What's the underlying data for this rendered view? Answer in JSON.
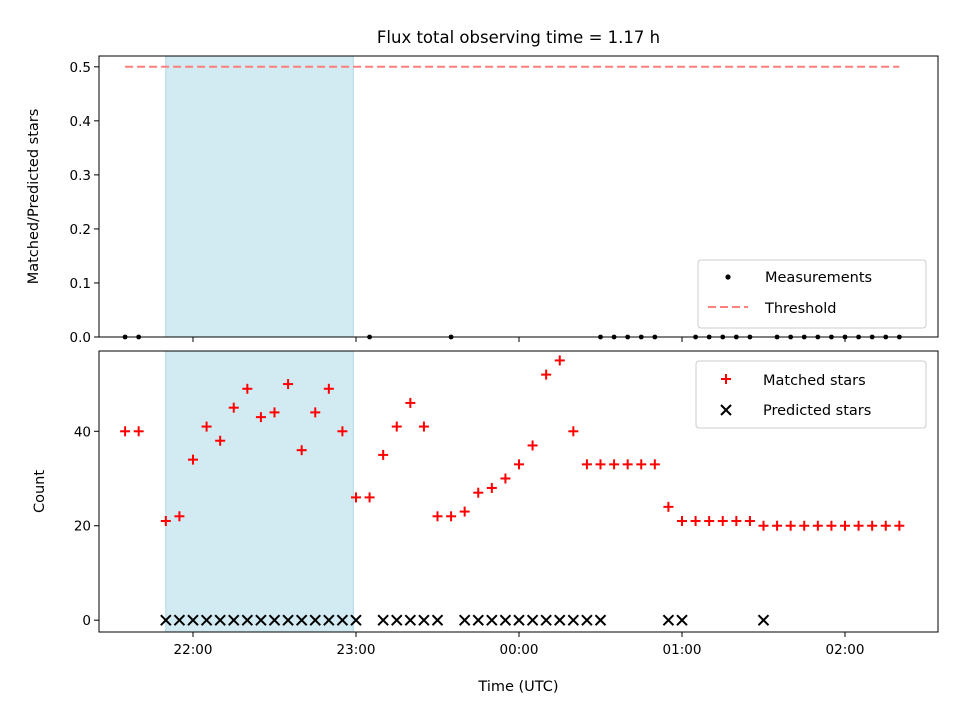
{
  "chart_data": [
    {
      "type": "scatter",
      "title": "Flux total observing time = 1.17 h",
      "xlabel": "",
      "ylabel": "Matched/Predicted stars",
      "ylim": [
        0,
        0.52
      ],
      "yticks": [
        "0.0",
        "0.1",
        "0.2",
        "0.3",
        "0.4",
        "0.5"
      ],
      "ytick_values": [
        0,
        0.1,
        0.2,
        0.3,
        0.4,
        0.5
      ],
      "shaded_interval": [
        "21:50",
        "22:59"
      ],
      "shade_color": "#add8e6",
      "legend_placement": "lower-right",
      "series": [
        {
          "name": "Measurements",
          "marker": "dot",
          "color": "#000000",
          "x": [
            "21:35",
            "21:40",
            "23:05",
            "23:35",
            "00:30",
            "00:35",
            "00:40",
            "00:45",
            "00:50",
            "01:05",
            "01:10",
            "01:15",
            "01:20",
            "01:25",
            "01:35",
            "01:40",
            "01:45",
            "01:50",
            "01:55",
            "02:00",
            "02:05",
            "02:10",
            "02:15",
            "02:20"
          ],
          "y": [
            0,
            0,
            0,
            0,
            0,
            0,
            0,
            0,
            0,
            0,
            0,
            0,
            0,
            0,
            0,
            0,
            0,
            0,
            0,
            0,
            0,
            0,
            0,
            0
          ]
        },
        {
          "name": "Threshold",
          "style": "dashed",
          "color": "#ff7f7f",
          "x": [
            "21:35",
            "02:20"
          ],
          "y": [
            0.5,
            0.5
          ]
        }
      ]
    },
    {
      "type": "scatter",
      "title": "",
      "xlabel": "Time (UTC)",
      "ylabel": "Count",
      "ylim": [
        -2.5,
        57
      ],
      "yticks": [
        "0",
        "20",
        "40"
      ],
      "ytick_values": [
        0,
        20,
        40
      ],
      "xticks": [
        "22:00",
        "23:00",
        "00:00",
        "01:00",
        "02:00"
      ],
      "shaded_interval": [
        "21:50",
        "22:59"
      ],
      "shade_color": "#add8e6",
      "legend_placement": "upper-right",
      "series": [
        {
          "name": "Matched stars",
          "marker": "plus",
          "color": "#ff0000",
          "x": [
            "21:35",
            "21:40",
            "21:50",
            "21:55",
            "22:00",
            "22:05",
            "22:10",
            "22:15",
            "22:20",
            "22:25",
            "22:30",
            "22:35",
            "22:40",
            "22:45",
            "22:50",
            "22:55",
            "23:00",
            "23:05",
            "23:10",
            "23:15",
            "23:20",
            "23:25",
            "23:30",
            "23:35",
            "23:40",
            "23:45",
            "23:50",
            "23:55",
            "00:00",
            "00:05",
            "00:10",
            "00:15",
            "00:20",
            "00:25",
            "00:30",
            "00:35",
            "00:40",
            "00:45",
            "00:50",
            "00:55",
            "01:00",
            "01:05",
            "01:10",
            "01:15",
            "01:20",
            "01:25",
            "01:30",
            "01:35",
            "01:40",
            "01:45",
            "01:50",
            "01:55",
            "02:00",
            "02:05",
            "02:10",
            "02:15",
            "02:20"
          ],
          "y": [
            40,
            40,
            21,
            22,
            34,
            41,
            38,
            45,
            49,
            43,
            44,
            50,
            36,
            44,
            49,
            40,
            26,
            26,
            35,
            41,
            46,
            41,
            22,
            22,
            23,
            27,
            28,
            30,
            33,
            37,
            52,
            55,
            40,
            33,
            33,
            33,
            33,
            33,
            33,
            24,
            21,
            21,
            21,
            21,
            21,
            21,
            20,
            20,
            20,
            20,
            20,
            20,
            20,
            20,
            20,
            20,
            20
          ]
        },
        {
          "name": "Predicted stars",
          "marker": "x",
          "color": "#000000",
          "x": [
            "21:50",
            "21:55",
            "22:00",
            "22:05",
            "22:10",
            "22:15",
            "22:20",
            "22:25",
            "22:30",
            "22:35",
            "22:40",
            "22:45",
            "22:50",
            "22:55",
            "23:00",
            "23:10",
            "23:15",
            "23:20",
            "23:25",
            "23:30",
            "23:40",
            "23:45",
            "23:50",
            "23:55",
            "00:00",
            "00:05",
            "00:10",
            "00:15",
            "00:20",
            "00:25",
            "00:30",
            "00:55",
            "01:00",
            "01:30"
          ],
          "y": [
            0,
            0,
            0,
            0,
            0,
            0,
            0,
            0,
            0,
            0,
            0,
            0,
            0,
            0,
            0,
            0,
            0,
            0,
            0,
            0,
            0,
            0,
            0,
            0,
            0,
            0,
            0,
            0,
            0,
            0,
            0,
            0,
            0,
            0
          ]
        }
      ]
    }
  ]
}
